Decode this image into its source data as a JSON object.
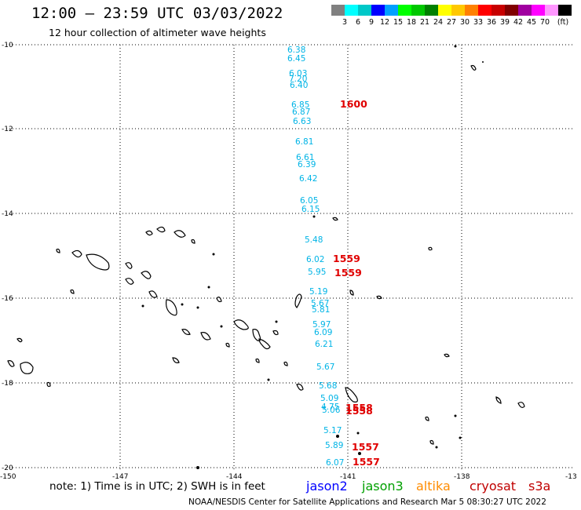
{
  "header": {
    "title": "12:00 – 23:59 UTC 03/03/2022",
    "subtitle": "12 hour collection of altimeter wave heights"
  },
  "legend": {
    "unit": "(ft)",
    "colors": [
      "#808080",
      "#00ffff",
      "#00c8c8",
      "#0000ff",
      "#00a0ff",
      "#00ff00",
      "#00c800",
      "#008000",
      "#ffff00",
      "#ffc800",
      "#ff8000",
      "#ff0000",
      "#c80000",
      "#800000",
      "#a000a0",
      "#ff00ff",
      "#ff96ff",
      "#000000"
    ],
    "labels": [
      "3",
      "6",
      "9",
      "12",
      "15",
      "18",
      "21",
      "24",
      "27",
      "30",
      "33",
      "36",
      "39",
      "42",
      "45",
      "70"
    ]
  },
  "axes": {
    "y_labels": [
      "-10",
      "-12",
      "-14",
      "-16",
      "-18",
      "-20"
    ],
    "x_labels": [
      "-150",
      "-147",
      "-144",
      "-141",
      "-138",
      "-13"
    ]
  },
  "wave_heights": [
    {
      "value": "6.38",
      "color": "cyan"
    },
    {
      "value": "6.45",
      "color": "cyan"
    },
    {
      "value": "6.03",
      "color": "cyan"
    },
    {
      "value": "7.20",
      "color": "cyan"
    },
    {
      "value": "6.40",
      "color": "cyan"
    },
    {
      "value": "6.85",
      "color": "cyan"
    },
    {
      "value": "6.87",
      "color": "cyan"
    },
    {
      "value": "6.63",
      "color": "cyan"
    },
    {
      "value": "6.81",
      "color": "cyan"
    },
    {
      "value": "6.61",
      "color": "cyan"
    },
    {
      "value": "6.39",
      "color": "cyan"
    },
    {
      "value": "6.42",
      "color": "cyan"
    },
    {
      "value": "6.05",
      "color": "cyan"
    },
    {
      "value": "6.15",
      "color": "cyan"
    },
    {
      "value": "5.48",
      "color": "cyan"
    },
    {
      "value": "6.02",
      "color": "cyan"
    },
    {
      "value": "5.95",
      "color": "cyan"
    },
    {
      "value": "5.19",
      "color": "cyan"
    },
    {
      "value": "5.67",
      "color": "cyan"
    },
    {
      "value": "5.81",
      "color": "cyan"
    },
    {
      "value": "5.97",
      "color": "cyan"
    },
    {
      "value": "6.09",
      "color": "cyan"
    },
    {
      "value": "6.21",
      "color": "cyan"
    },
    {
      "value": "5.67",
      "color": "cyan"
    },
    {
      "value": "5.68",
      "color": "cyan"
    },
    {
      "value": "5.09",
      "color": "cyan"
    },
    {
      "value": "4.75",
      "color": "cyan"
    },
    {
      "value": "5.06",
      "color": "cyan"
    },
    {
      "value": "5.17",
      "color": "cyan"
    },
    {
      "value": "5.89",
      "color": "cyan"
    },
    {
      "value": "6.07",
      "color": "cyan"
    }
  ],
  "time_labels": [
    "1600",
    "1559",
    "1559",
    "1558",
    "1558",
    "1557",
    "1557"
  ],
  "footer": {
    "note": "note: 1) Time is in UTC; 2) SWH is in feet",
    "sat_jason2": "jason2",
    "sat_jason3": "jason3",
    "sat_altika": "altika",
    "sat_cryosat": "cryosat",
    "sat_s3a": "s3a",
    "credit": "NOAA/NESDIS Center for Satellite Applications and Research   Mar  5 08:30:27 UTC 2022"
  },
  "colors": {
    "jason2": "#0000ff",
    "jason3": "#00a000",
    "altika": "#ff8c00",
    "cryosat": "#c00000",
    "s3a": "#c00000",
    "wave_text": "#00b4e6",
    "time_text": "#e00000"
  }
}
